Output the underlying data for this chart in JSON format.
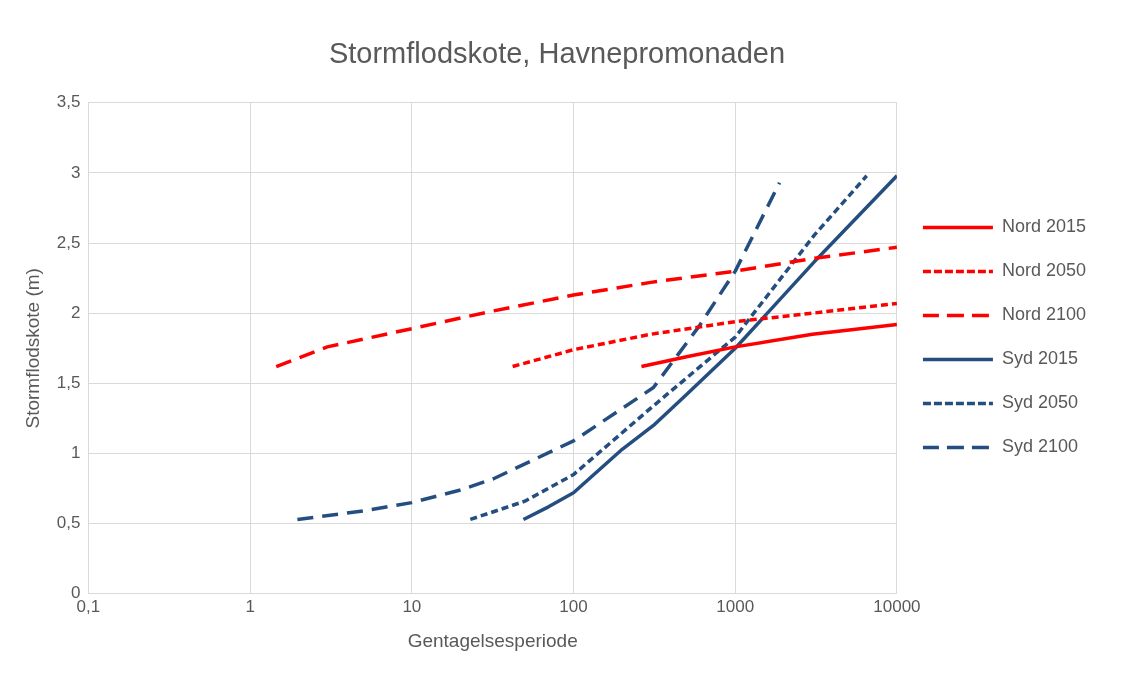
{
  "chart_data": {
    "type": "line",
    "title": "Stormflodskote, Havnepromonaden",
    "xlabel": "Gentagelsesperiode",
    "ylabel": "Stormflodskote (m)",
    "log": "x",
    "xlim": [
      0.1,
      10000
    ],
    "xticks": [
      {
        "value": 0.1,
        "label": "0,1"
      },
      1,
      10,
      100,
      1000,
      10000
    ],
    "ylim": [
      0,
      3.5
    ],
    "yticks": [
      0,
      {
        "value": 0.5,
        "label": "0,5"
      },
      1,
      {
        "value": 1.5,
        "label": "1,5"
      },
      2,
      {
        "value": 2.5,
        "label": "2,5"
      },
      3,
      {
        "value": 3.5,
        "label": "3,5"
      }
    ],
    "grid": true,
    "legend": "right",
    "marker": "none",
    "series": [
      {
        "name": "Nord 2015",
        "color": "#ff0000",
        "line_style": "solid",
        "x": [
          263,
          500,
          1000,
          3000,
          10000
        ],
        "values": [
          1.62,
          1.69,
          1.76,
          1.85,
          1.92
        ]
      },
      {
        "name": "Nord 2050",
        "color": "#ff0000",
        "line_style": "dotted",
        "x": [
          42,
          100,
          300,
          1000,
          3000,
          10000
        ],
        "values": [
          1.62,
          1.74,
          1.85,
          1.94,
          2.0,
          2.07
        ]
      },
      {
        "name": "Nord 2100",
        "color": "#ff0000",
        "line_style": "dashed",
        "x": [
          1.45,
          3,
          10,
          30,
          100,
          300,
          1000,
          3000,
          10000
        ],
        "values": [
          1.62,
          1.76,
          1.89,
          2.01,
          2.13,
          2.22,
          2.3,
          2.39,
          2.47
        ]
      },
      {
        "name": "Syd 2015",
        "color": "#254e80",
        "line_style": "solid",
        "x": [
          49,
          70,
          100,
          200,
          312,
          500,
          1000,
          3100,
          10000
        ],
        "values": [
          0.53,
          0.62,
          0.72,
          1.03,
          1.2,
          1.42,
          1.75,
          2.37,
          2.98
        ]
      },
      {
        "name": "Syd 2050",
        "color": "#254e80",
        "line_style": "dotted",
        "x": [
          23,
          50,
          100,
          312,
          1000,
          3100,
          6500
        ],
        "values": [
          0.53,
          0.66,
          0.85,
          1.34,
          1.83,
          2.56,
          2.98
        ]
      },
      {
        "name": "Syd 2100",
        "color": "#254e80",
        "line_style": "dashed",
        "x": [
          1.96,
          5,
          10,
          20,
          32,
          100,
          312,
          600,
          1000,
          1880
        ],
        "values": [
          0.53,
          0.59,
          0.65,
          0.74,
          0.82,
          1.09,
          1.47,
          1.91,
          2.3,
          2.93
        ]
      }
    ]
  }
}
